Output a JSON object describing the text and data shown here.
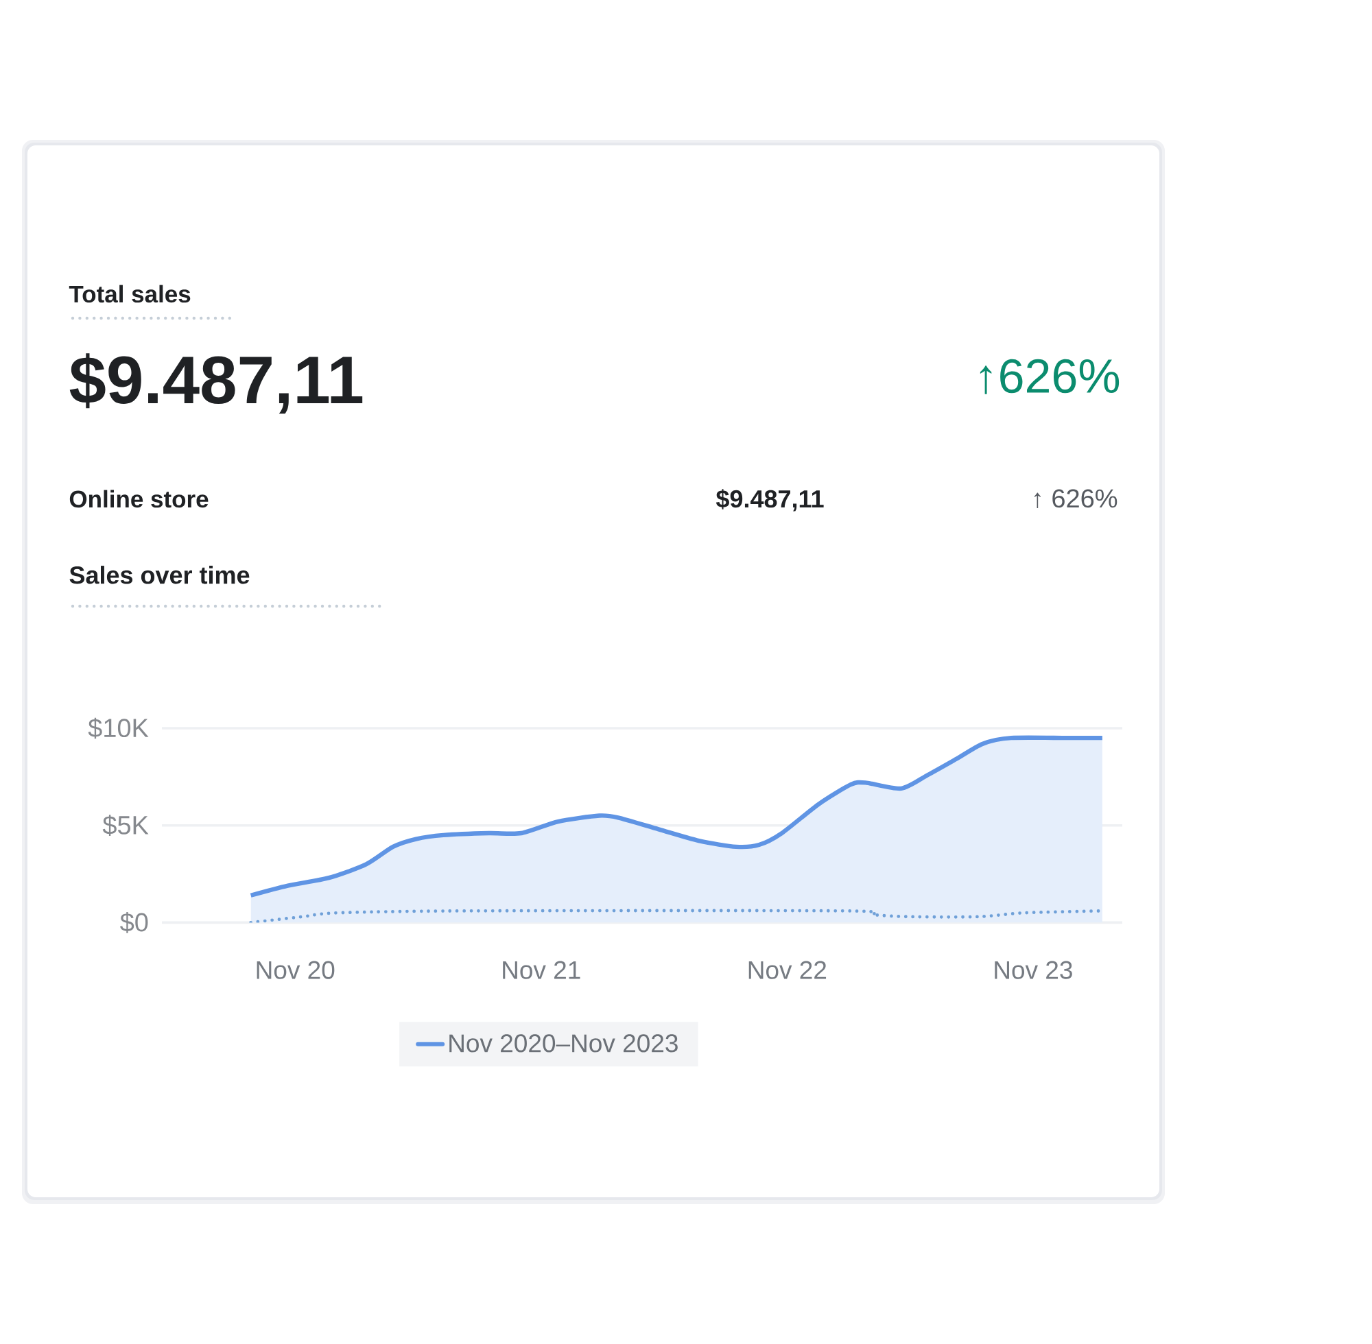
{
  "chart_data": [
    {
      "type": "other",
      "title": "Total sales",
      "annotations": [
        "$9.487,11",
        "↑626%",
        "Online store",
        "$9.487,11",
        "↑ 626%"
      ]
    },
    {
      "type": "area",
      "title": "Sales over time",
      "xlim": [
        "2020-04-16",
        "2024-03-12"
      ],
      "xticks": [
        {
          "value": "2020-11",
          "label": "Nov 20"
        },
        {
          "value": "2021-11",
          "label": "Nov 21"
        },
        {
          "value": "2022-11",
          "label": "Nov 22"
        },
        {
          "value": "2023-11",
          "label": "Nov 23"
        }
      ],
      "ylim": [
        0,
        10000
      ],
      "yticks": [
        {
          "value": 0,
          "label": "$0"
        },
        {
          "value": 5000,
          "label": "$5K"
        },
        {
          "value": 10000,
          "label": "$10K"
        }
      ],
      "grid": "y",
      "legend": "bottom",
      "series": [
        {
          "name": "Nov 2020–Nov 2023",
          "type": "area",
          "color": "#5f94e4",
          "x": [
            "2020-08-27",
            "2020-10-21",
            "2020-12-21",
            "2021-02-14",
            "2021-03-25",
            "2021-04-28",
            "2021-06-08",
            "2021-08-15",
            "2021-10-02",
            "2021-11-26",
            "2022-01-27",
            "2022-02-22",
            "2022-04-23",
            "2022-06-23",
            "2022-08-17",
            "2022-09-20",
            "2022-10-24",
            "2022-12-18",
            "2023-02-04",
            "2023-02-24",
            "2023-04-18",
            "2023-05-28",
            "2023-07-08",
            "2023-08-18",
            "2023-09-29",
            "2023-12-22",
            "2024-02-12"
          ],
          "values": [
            1400,
            1900,
            2300,
            3000,
            3900,
            4300,
            4500,
            4600,
            4600,
            5200,
            5500,
            5400,
            4800,
            4200,
            3900,
            4000,
            4600,
            6100,
            7100,
            7200,
            6900,
            7600,
            8400,
            9200,
            9500,
            9500,
            9500
          ]
        },
        {
          "type": "line",
          "line_style": "dotted",
          "color": "#6fa0d8",
          "x": [
            "2020-08-27",
            "2020-11-11",
            "2021-01-04",
            "2021-07-12",
            "2023-01-28",
            "2023-03-08",
            "2023-04-30",
            "2023-08-11",
            "2023-10-19",
            "2024-02-12"
          ],
          "values": [
            0,
            300,
            500,
            600,
            600,
            400,
            300,
            300,
            500,
            600
          ]
        }
      ]
    }
  ]
}
